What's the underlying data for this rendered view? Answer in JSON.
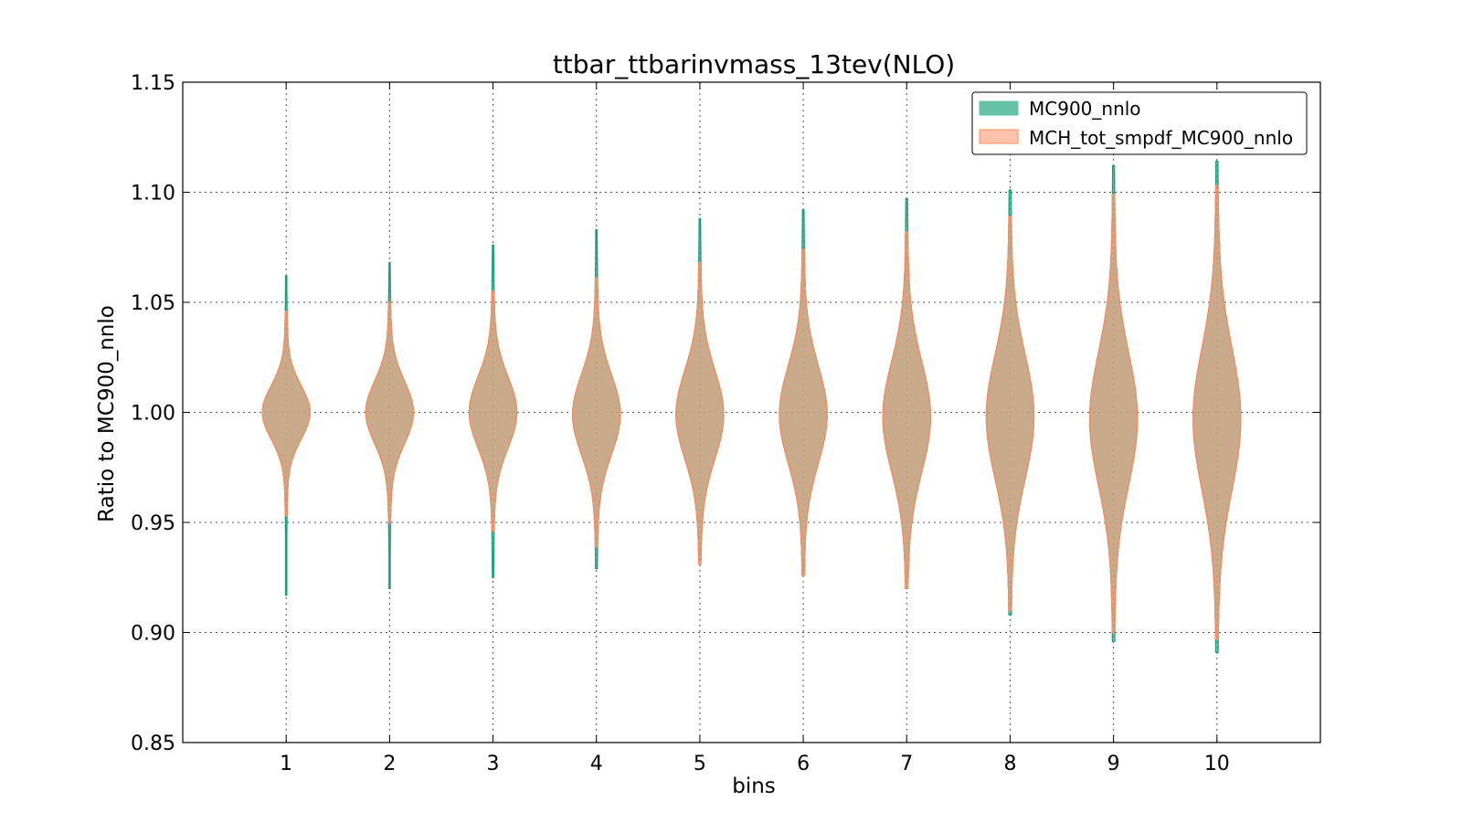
{
  "chart_data": {
    "type": "violin",
    "title": "ttbar_ttbarinvmass_13tev(NLO)",
    "xlabel": "bins",
    "ylabel": "Ratio to MC900_nnlo",
    "ylim": [
      0.85,
      1.15
    ],
    "xlim": [
      0,
      11
    ],
    "xticks": [
      1,
      2,
      3,
      4,
      5,
      6,
      7,
      8,
      9,
      10
    ],
    "xtick_labels": [
      "1",
      "2",
      "3",
      "4",
      "5",
      "6",
      "7",
      "8",
      "9",
      "10"
    ],
    "yticks": [
      0.85,
      0.9,
      0.95,
      1.0,
      1.05,
      1.1,
      1.15
    ],
    "ytick_labels": [
      "0.85",
      "0.90",
      "0.95",
      "1.00",
      "1.05",
      "1.10",
      "1.15"
    ],
    "grid": true,
    "legend_position": "top-right",
    "categories": [
      "1",
      "2",
      "3",
      "4",
      "5",
      "6",
      "7",
      "8",
      "9",
      "10"
    ],
    "series": [
      {
        "name": "MC900_nnlo",
        "color": "#66c2a5",
        "edge_color": "#1b9e77",
        "min": [
          0.917,
          0.92,
          0.925,
          0.929,
          0.933,
          0.926,
          0.92,
          0.908,
          0.896,
          0.891
        ],
        "max": [
          1.062,
          1.068,
          1.076,
          1.083,
          1.088,
          1.092,
          1.097,
          1.101,
          1.112,
          1.114
        ],
        "center": [
          1.0,
          1.0,
          1.0,
          0.999,
          0.999,
          0.999,
          0.998,
          0.998,
          0.997,
          0.997
        ],
        "spread": [
          0.012,
          0.014,
          0.016,
          0.018,
          0.02,
          0.022,
          0.025,
          0.028,
          0.03,
          0.032
        ]
      },
      {
        "name": "MCH_tot_smpdf_MC900_nnlo",
        "color": "#fc8d62",
        "edge_color": "#fc8d62",
        "min": [
          0.953,
          0.95,
          0.946,
          0.939,
          0.931,
          0.926,
          0.92,
          0.91,
          0.9,
          0.897
        ],
        "max": [
          1.046,
          1.05,
          1.055,
          1.061,
          1.068,
          1.074,
          1.082,
          1.089,
          1.099,
          1.103
        ],
        "center": [
          1.0,
          1.0,
          1.0,
          0.999,
          0.999,
          0.999,
          0.998,
          0.998,
          0.997,
          0.997
        ],
        "spread": [
          0.012,
          0.014,
          0.016,
          0.018,
          0.02,
          0.022,
          0.025,
          0.028,
          0.03,
          0.032
        ]
      }
    ]
  }
}
